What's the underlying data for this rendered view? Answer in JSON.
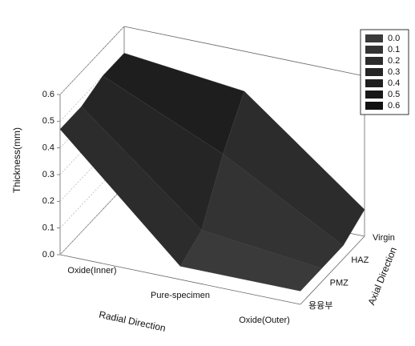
{
  "chart_data": {
    "type": "surface3d",
    "zlabel": "Thickness(mm)",
    "xlabel": "Radial Direction",
    "ylabel": "Axial Direction",
    "x_categories": [
      "Oxide(Inner)",
      "Pure-specimen",
      "Oxide(Outer)"
    ],
    "y_categories": [
      "용융부",
      "PMZ",
      "HAZ",
      "Virgin"
    ],
    "z": [
      [
        0.47,
        0.05,
        0.05
      ],
      [
        0.47,
        0.1,
        0.05
      ],
      [
        0.5,
        0.3,
        0.05
      ],
      [
        0.5,
        0.45,
        0.1
      ]
    ],
    "zlim": [
      0,
      0.6
    ],
    "zticks": [
      {
        "value": 0,
        "label": "0.0"
      },
      0.1,
      0.2,
      0.3,
      0.4,
      0.5,
      0.6
    ],
    "legend": {
      "position": "upper right",
      "levels": [
        {
          "value": 0,
          "label": "0.0"
        },
        0.1,
        0.2,
        0.3,
        0.4,
        0.5,
        0.6
      ],
      "colors": [
        "#3a3a3a",
        "#333333",
        "#2c2c2c",
        "#252525",
        "#1e1e1e",
        "#181818",
        "#111111"
      ]
    }
  }
}
